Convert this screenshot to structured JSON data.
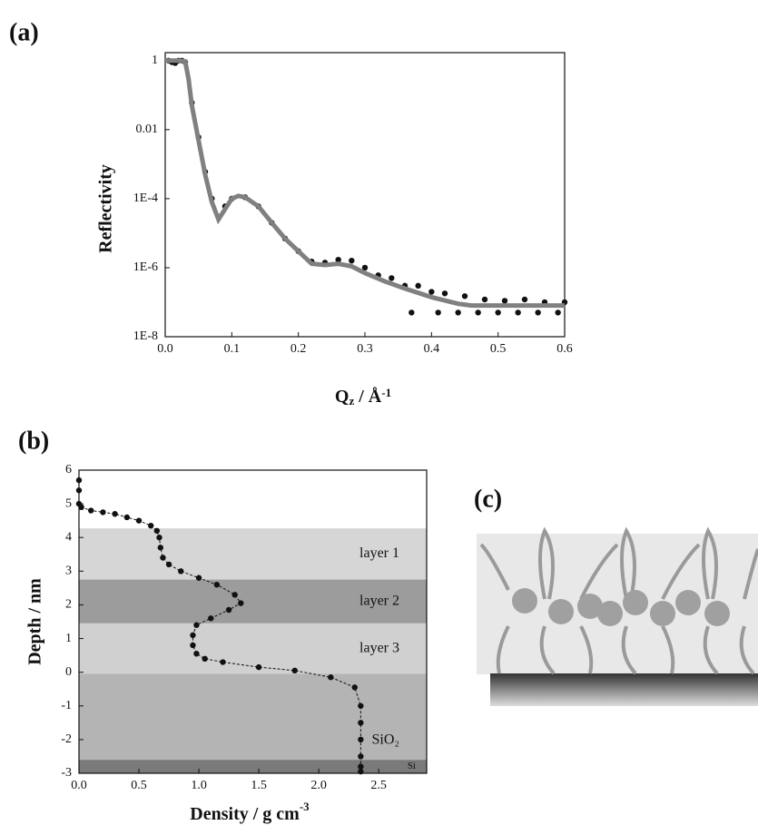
{
  "chart_data": [
    {
      "type": "scatter",
      "panel": "(a)",
      "xlabel": {
        "base": "Q",
        "sub": "z",
        "mid": " / Å",
        "sup": "-1"
      },
      "ylabel": "Reflectivity",
      "log_y": true,
      "xlim": [
        0,
        0.6
      ],
      "ylim": [
        1e-08,
        1.7
      ],
      "xticks": [
        {
          "value": 0,
          "label": "0.0"
        },
        {
          "value": 0.1,
          "label": "0.1"
        },
        {
          "value": 0.2,
          "label": "0.2"
        },
        {
          "value": 0.3,
          "label": "0.3"
        },
        {
          "value": 0.4,
          "label": "0.4"
        },
        {
          "value": 0.5,
          "label": "0.5"
        },
        {
          "value": 0.6,
          "label": "0.6"
        }
      ],
      "yticks": [
        {
          "value": 1e-08,
          "label": "1E-8"
        },
        {
          "value": 1e-06,
          "label": "1E-6"
        },
        {
          "value": 0.0001,
          "label": "1E-4"
        },
        0.01,
        1
      ],
      "series": [
        {
          "color": "#111111",
          "marker": "circle",
          "line": false,
          "x": [
            0.005,
            0.01,
            0.015,
            0.02,
            0.025,
            0.03,
            0.04,
            0.05,
            0.06,
            0.07,
            0.08,
            0.09,
            0.1,
            0.12,
            0.14,
            0.16,
            0.18,
            0.2,
            0.22,
            0.24,
            0.26,
            0.28,
            0.3,
            0.32,
            0.34,
            0.36,
            0.37,
            0.38,
            0.4,
            0.41,
            0.42,
            0.44,
            0.45,
            0.47,
            0.48,
            0.5,
            0.51,
            0.53,
            0.54,
            0.56,
            0.57,
            0.59,
            0.6
          ],
          "values": [
            1,
            0.9,
            0.85,
            1,
            1,
            0.9,
            0.06,
            0.006,
            0.0006,
            0.0001,
            3e-05,
            6e-05,
            0.0001,
            0.00011,
            6e-05,
            2e-05,
            7e-06,
            3e-06,
            1.5e-06,
            1.4e-06,
            1.7e-06,
            1.6e-06,
            1e-06,
            6e-07,
            5e-07,
            3e-07,
            5e-08,
            3e-07,
            2e-07,
            5e-08,
            1.8e-07,
            5e-08,
            1.5e-07,
            5e-08,
            1.2e-07,
            5e-08,
            1.1e-07,
            5e-08,
            1.2e-07,
            5e-08,
            1e-07,
            5e-08,
            1e-07
          ]
        },
        {
          "color": "#808080",
          "marker": "none",
          "line": true,
          "x": [
            0.0,
            0.02,
            0.03,
            0.035,
            0.04,
            0.05,
            0.06,
            0.07,
            0.08,
            0.09,
            0.1,
            0.11,
            0.12,
            0.14,
            0.16,
            0.18,
            0.2,
            0.22,
            0.24,
            0.26,
            0.28,
            0.3,
            0.33,
            0.36,
            0.4,
            0.44,
            0.46,
            0.5,
            0.6
          ],
          "values": [
            1,
            1,
            0.95,
            0.3,
            0.05,
            0.005,
            0.0005,
            8e-05,
            2.5e-05,
            5e-05,
            0.0001,
            0.00012,
            0.00011,
            6e-05,
            2e-05,
            7e-06,
            3e-06,
            1.3e-06,
            1.2e-06,
            1.3e-06,
            1.1e-06,
            7e-07,
            4e-07,
            2.5e-07,
            1.4e-07,
            9e-08,
            8e-08,
            8e-08,
            8e-08
          ]
        }
      ]
    },
    {
      "type": "line",
      "panel": "(b)",
      "xlabel": {
        "base": "Density / g cm",
        "sup": "-3"
      },
      "ylabel": "Depth / nm",
      "xlim": [
        0,
        2.9
      ],
      "ylim": [
        -3,
        6
      ],
      "xticks": [
        {
          "value": 0,
          "label": "0.0"
        },
        {
          "value": 0.5,
          "label": "0.5"
        },
        {
          "value": 1,
          "label": "1.0"
        },
        {
          "value": 1.5,
          "label": "1.5"
        },
        {
          "value": 2,
          "label": "2.0"
        },
        {
          "value": 2.5,
          "label": "2.5"
        }
      ],
      "yticks": [
        -3,
        -2,
        -1,
        0,
        1,
        2,
        3,
        4,
        5,
        6
      ],
      "bands": [
        {
          "label": "layer 1",
          "top": 4.27,
          "bottom": 2.75,
          "color": "#d6d6d6"
        },
        {
          "label": "layer 2",
          "top": 2.75,
          "bottom": 1.45,
          "color": "#9c9c9c"
        },
        {
          "label": "layer 3",
          "top": 1.45,
          "bottom": -0.05,
          "color": "#d0d0d0"
        },
        {
          "label": "SiO₂",
          "top": -0.05,
          "bottom": -2.6,
          "color": "#b4b4b4"
        },
        {
          "label": "Si",
          "top": -2.6,
          "bottom": -3,
          "color": "#7a7a7a"
        }
      ],
      "series": [
        {
          "color": "#111111",
          "marker": "circle",
          "line": true,
          "x": [
            0,
            0,
            0,
            0.02,
            0.1,
            0.2,
            0.3,
            0.4,
            0.5,
            0.6,
            0.65,
            0.67,
            0.68,
            0.7,
            0.75,
            0.85,
            1.0,
            1.15,
            1.3,
            1.35,
            1.25,
            1.1,
            0.98,
            0.95,
            0.95,
            0.98,
            1.05,
            1.2,
            1.5,
            1.8,
            2.1,
            2.3,
            2.35,
            2.35,
            2.35,
            2.35,
            2.35,
            2.35
          ],
          "values": [
            5.7,
            5.4,
            5.0,
            4.9,
            4.8,
            4.75,
            4.7,
            4.6,
            4.5,
            4.35,
            4.2,
            4.0,
            3.7,
            3.4,
            3.2,
            3.0,
            2.8,
            2.6,
            2.3,
            2.05,
            1.85,
            1.6,
            1.4,
            1.1,
            0.8,
            0.55,
            0.4,
            0.3,
            0.15,
            0.05,
            -0.15,
            -0.45,
            -1.0,
            -1.5,
            -2.0,
            -2.5,
            -2.8,
            -2.95
          ]
        }
      ]
    }
  ],
  "diagram": {
    "panel": "(c)"
  }
}
